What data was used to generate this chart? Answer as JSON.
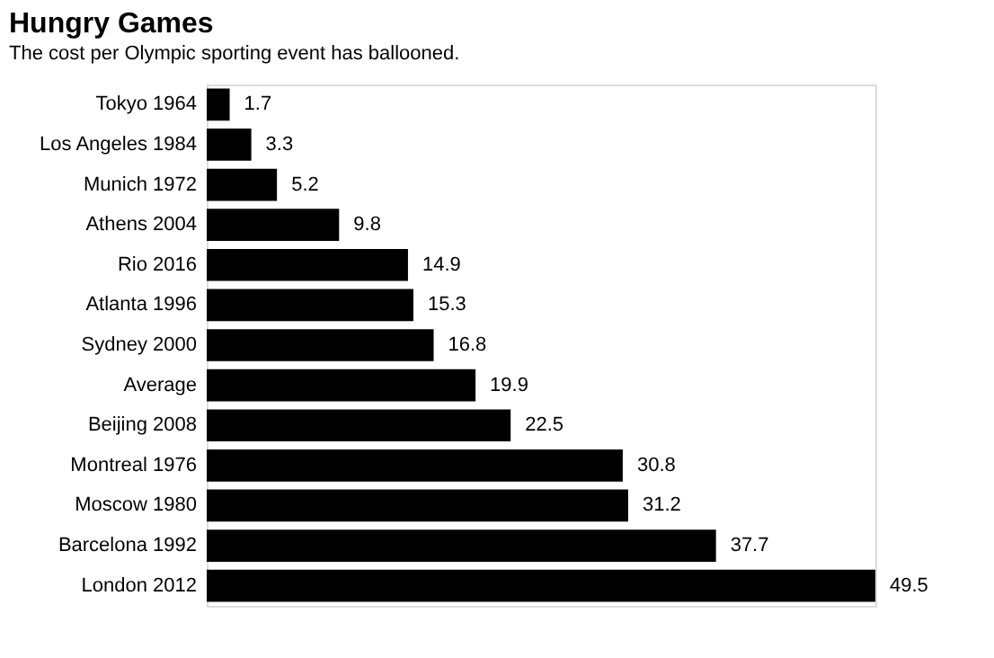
{
  "chart_data": {
    "type": "bar",
    "orientation": "horizontal",
    "title": "Hungry Games",
    "subtitle": "The cost per Olympic sporting event has ballooned.",
    "categories": [
      "Tokyo 1964",
      "Los Angeles 1984",
      "Munich 1972",
      "Athens 2004",
      "Rio 2016",
      "Atlanta 1996",
      "Sydney 2000",
      "Average",
      "Beijing 2008",
      "Montreal 1976",
      "Moscow 1980",
      "Barcelona 1992",
      "London 2012"
    ],
    "values": [
      1.7,
      3.3,
      5.2,
      9.8,
      14.9,
      15.3,
      16.8,
      19.9,
      22.5,
      30.8,
      31.2,
      37.7,
      49.5
    ],
    "color": "#000000",
    "data_labels": true
  }
}
